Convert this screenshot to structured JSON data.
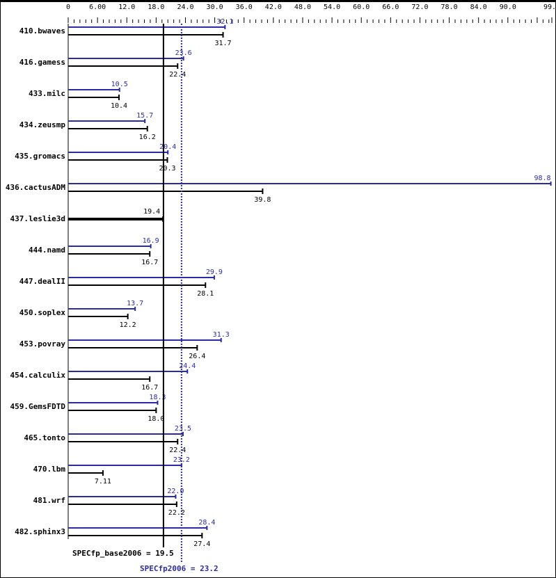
{
  "chart_data": {
    "type": "bar",
    "orientation": "horizontal",
    "xlim": [
      0,
      99
    ],
    "ticks": [
      "0",
      "6.00",
      "12.0",
      "18.0",
      "24.0",
      "30.0",
      "36.0",
      "42.0",
      "48.0",
      "54.0",
      "60.0",
      "66.0",
      "72.0",
      "78.0",
      "84.0",
      "90.0",
      "99.0"
    ],
    "categories": [
      "410.bwaves",
      "416.gamess",
      "433.milc",
      "434.zeusmp",
      "435.gromacs",
      "436.cactusADM",
      "437.leslie3d",
      "444.namd",
      "447.dealII",
      "450.soplex",
      "453.povray",
      "454.calculix",
      "459.GemsFDTD",
      "465.tonto",
      "470.lbm",
      "481.wrf",
      "482.sphinx3"
    ],
    "series": [
      {
        "key": "peak",
        "color": "#2a2aa8",
        "values": [
          32.1,
          23.6,
          10.5,
          15.7,
          20.4,
          98.8,
          null,
          16.9,
          29.9,
          13.7,
          31.3,
          24.4,
          18.3,
          23.5,
          23.2,
          22.0,
          28.4
        ],
        "labels": [
          "32.1",
          "23.6",
          "10.5",
          "15.7",
          "20.4",
          "98.8",
          "",
          "16.9",
          "29.9",
          "13.7",
          "31.3",
          "24.4",
          "18.3",
          "23.5",
          "23.2",
          "22.0",
          "28.4"
        ]
      },
      {
        "key": "base",
        "color": "#000000",
        "values": [
          31.7,
          22.4,
          10.4,
          16.2,
          20.3,
          39.8,
          19.4,
          16.7,
          28.1,
          12.2,
          26.4,
          16.7,
          18.0,
          22.4,
          7.11,
          22.2,
          27.4
        ],
        "labels": [
          "31.7",
          "22.4",
          "10.4",
          "16.2",
          "20.3",
          "39.8",
          "19.4",
          "16.7",
          "28.1",
          "12.2",
          "26.4",
          "16.7",
          "18.0",
          "22.4",
          "7.11",
          "22.2",
          "27.4"
        ]
      }
    ],
    "reference_lines": [
      {
        "value": 19.5,
        "label": "SPECfp_base2006 = 19.5",
        "color": "#000000",
        "style": "solid"
      },
      {
        "value": 23.2,
        "label": "SPECfp2006 = 23.2",
        "color": "#2a2aa8",
        "style": "dotted"
      }
    ]
  }
}
